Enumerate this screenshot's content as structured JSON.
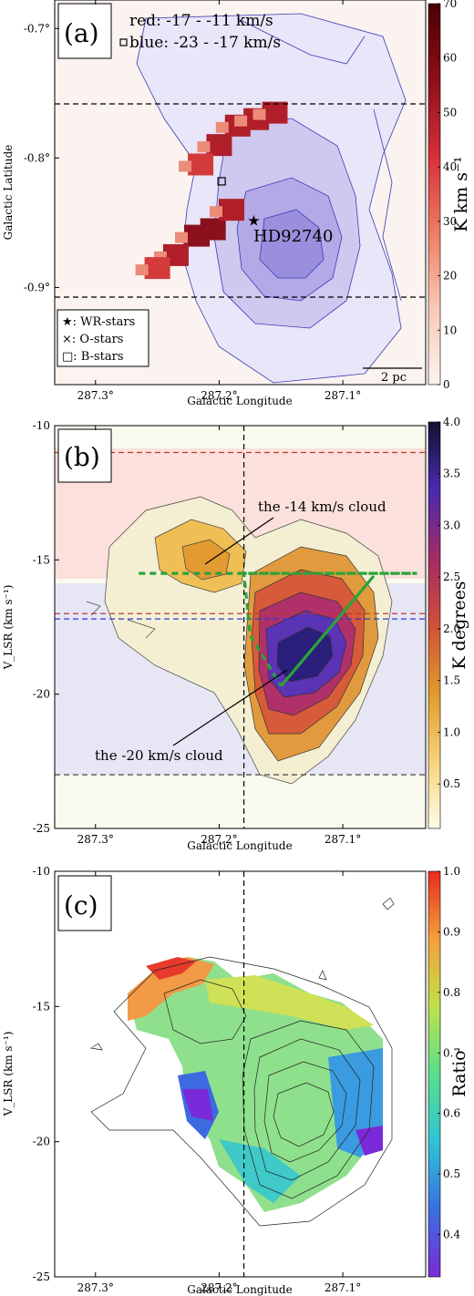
{
  "chart_data": [
    {
      "panel": "(a)",
      "type": "heatmap",
      "legend_top": [
        "red: -17 - -11 km/s",
        "blue: -23 - -17 km/s"
      ],
      "legend_markers": [
        "★: WR-stars",
        "×: O-stars",
        "□: B-stars"
      ],
      "star_label": "HD92740",
      "scale_bar": "2 pc",
      "xlabel": "Galactic Longitude",
      "ylabel": "Galactic Latitude",
      "xticks": [
        "287.3°",
        "287.2°",
        "287.1°"
      ],
      "xtick_values": [
        287.3,
        287.2,
        287.1
      ],
      "yticks": [
        "-0.7°",
        "-0.8°",
        "-0.9°"
      ],
      "ytick_values": [
        -0.7,
        -0.8,
        -0.9
      ],
      "xlim": [
        287.333,
        287.033
      ],
      "ylim": [
        -0.975,
        -0.678
      ],
      "hlines": [
        -0.748,
        -0.905
      ],
      "colorbar": {
        "label": "K km s⁻¹",
        "ticks": [
          "0",
          "10",
          "20",
          "30",
          "40",
          "50",
          "60",
          "70"
        ],
        "range": [
          0,
          70
        ],
        "colors": [
          "#fdf3ee",
          "#f8c9b6",
          "#ee7c63",
          "#d6303a",
          "#8e0e18",
          "#4a0003"
        ]
      },
      "red_emission": [
        {
          "l": 287.205,
          "b": -0.855,
          "v": 62
        },
        {
          "l": 287.218,
          "b": -0.86,
          "v": 55
        },
        {
          "l": 287.19,
          "b": -0.84,
          "v": 45
        },
        {
          "l": 287.235,
          "b": -0.875,
          "v": 42
        },
        {
          "l": 287.25,
          "b": -0.885,
          "v": 38
        },
        {
          "l": 287.185,
          "b": -0.775,
          "v": 48
        },
        {
          "l": 287.17,
          "b": -0.77,
          "v": 50
        },
        {
          "l": 287.155,
          "b": -0.765,
          "v": 46
        },
        {
          "l": 287.2,
          "b": -0.79,
          "v": 40
        },
        {
          "l": 287.215,
          "b": -0.805,
          "v": 30
        }
      ],
      "wr_star": {
        "l": 287.172,
        "b": -0.848
      },
      "b_stars": [
        {
          "l": 287.198,
          "b": -0.818
        },
        {
          "l": 287.285,
          "b": -0.706
        }
      ]
    },
    {
      "panel": "(b)",
      "type": "heatmap",
      "annotations": [
        "the -14 km/s cloud",
        "the -20 km/s cloud"
      ],
      "xlabel": "Galactic Longitude",
      "ylabel": "V_LSR (km s⁻¹)",
      "xticks": [
        "287.3°",
        "287.2°",
        "287.1°"
      ],
      "xtick_values": [
        287.3,
        287.2,
        287.1
      ],
      "yticks": [
        "-10",
        "-15",
        "-20",
        "-25"
      ],
      "ytick_values": [
        -10,
        -15,
        -20,
        -25
      ],
      "xlim": [
        287.333,
        287.033
      ],
      "ylim": [
        -25,
        -10
      ],
      "vline": 287.18,
      "hlines": [
        {
          "v": -11,
          "color": "#c0392b"
        },
        {
          "v": -17,
          "color": "#c0392b"
        },
        {
          "v": -17.2,
          "color": "#2a3ad6"
        },
        {
          "v": -23,
          "color": "#333333"
        }
      ],
      "colorbar": {
        "label": "K degrees",
        "ticks": [
          "0.5",
          "1.0",
          "1.5",
          "2.0",
          "2.5",
          "3.0",
          "3.5",
          "4.0"
        ],
        "range": [
          0.07,
          4.0
        ],
        "colors": [
          "#fefde8",
          "#f6d27a",
          "#e09a2a",
          "#d0503a",
          "#a42a62",
          "#4a2ab0",
          "#111130"
        ]
      },
      "emission": [
        {
          "l": 287.2,
          "v": -15.3,
          "t": 1.3
        },
        {
          "l": 287.23,
          "v": -15.0,
          "t": 1.1
        },
        {
          "l": 287.12,
          "v": -19.0,
          "t": 3.8
        },
        {
          "l": 287.135,
          "v": -19.8,
          "t": 3.7
        },
        {
          "l": 287.11,
          "v": -18.3,
          "t": 3.2
        },
        {
          "l": 287.15,
          "v": -21.0,
          "t": 2.5
        }
      ],
      "green_dashed": [
        [
          287.265,
          -15.5
        ],
        [
          287.04,
          -15.5
        ],
        [
          287.12,
          -15.5
        ],
        [
          287.17,
          -15.5
        ],
        [
          287.18,
          -15.5
        ],
        [
          287.175,
          -17.8
        ],
        [
          287.15,
          -19.7
        ]
      ],
      "green_solid": [
        [
          287.15,
          -19.7
        ],
        [
          287.075,
          -15.6
        ]
      ]
    },
    {
      "panel": "(c)",
      "type": "heatmap",
      "xlabel": "Galactic Longitude",
      "ylabel": "V_LSR (km s⁻¹)",
      "xticks": [
        "287.3°",
        "287.2°",
        "287.1°"
      ],
      "xtick_values": [
        287.3,
        287.2,
        287.1
      ],
      "yticks": [
        "-10",
        "-15",
        "-20",
        "-25"
      ],
      "ytick_values": [
        -10,
        -15,
        -20,
        -25
      ],
      "xlim": [
        287.333,
        287.033
      ],
      "ylim": [
        -25,
        -10
      ],
      "vline": 287.18,
      "colorbar": {
        "label": "Ratio",
        "ticks": [
          "0.4",
          "0.5",
          "0.6",
          "0.7",
          "0.8",
          "0.9",
          "1.0"
        ],
        "range": [
          0.33,
          1.0
        ],
        "colors": [
          "#7b2bd8",
          "#3a6ee0",
          "#2fc5d6",
          "#58df8c",
          "#bfe14a",
          "#f5a03a",
          "#e82a1e"
        ]
      }
    }
  ]
}
